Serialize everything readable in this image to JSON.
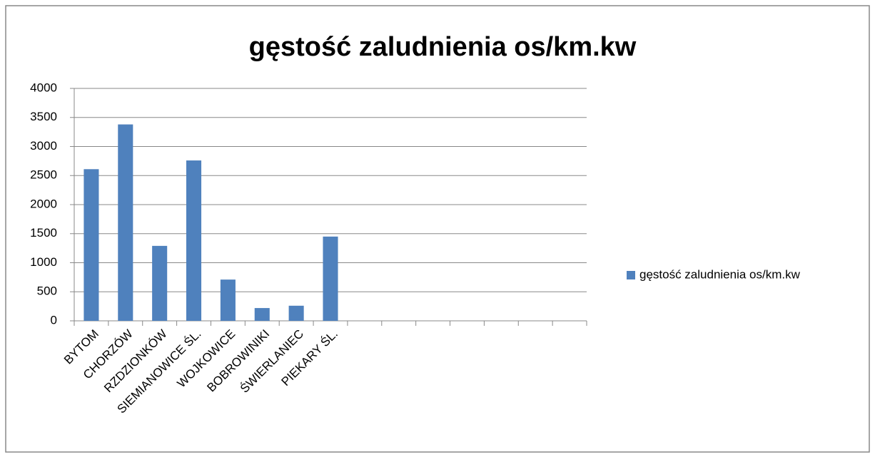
{
  "chart_data": {
    "type": "bar",
    "title": "gęstość zaludnienia os/km.kw",
    "categories": [
      "BYTOM",
      "CHORZÓW",
      "RZDZIONKÓW",
      "SIEMIANOWICE ŚL.",
      "WOJKOWICE",
      "BOBROWINIKI",
      "ŚWIERLANIEC",
      "PIEKARY ŚL.",
      null,
      null,
      null,
      null,
      null,
      null,
      null
    ],
    "series": [
      {
        "name": "gęstość zaludnienia os/km.kw",
        "color": "#4f81bd",
        "values": [
          2610,
          3380,
          1290,
          2760,
          710,
          220,
          260,
          1450,
          null,
          null,
          null,
          null,
          null,
          null,
          null
        ]
      }
    ],
    "ylim": [
      0,
      4000
    ],
    "yticks": [
      0,
      500,
      1000,
      1500,
      2000,
      2500,
      3000,
      3500,
      4000
    ],
    "grid": true,
    "legend": "right"
  }
}
